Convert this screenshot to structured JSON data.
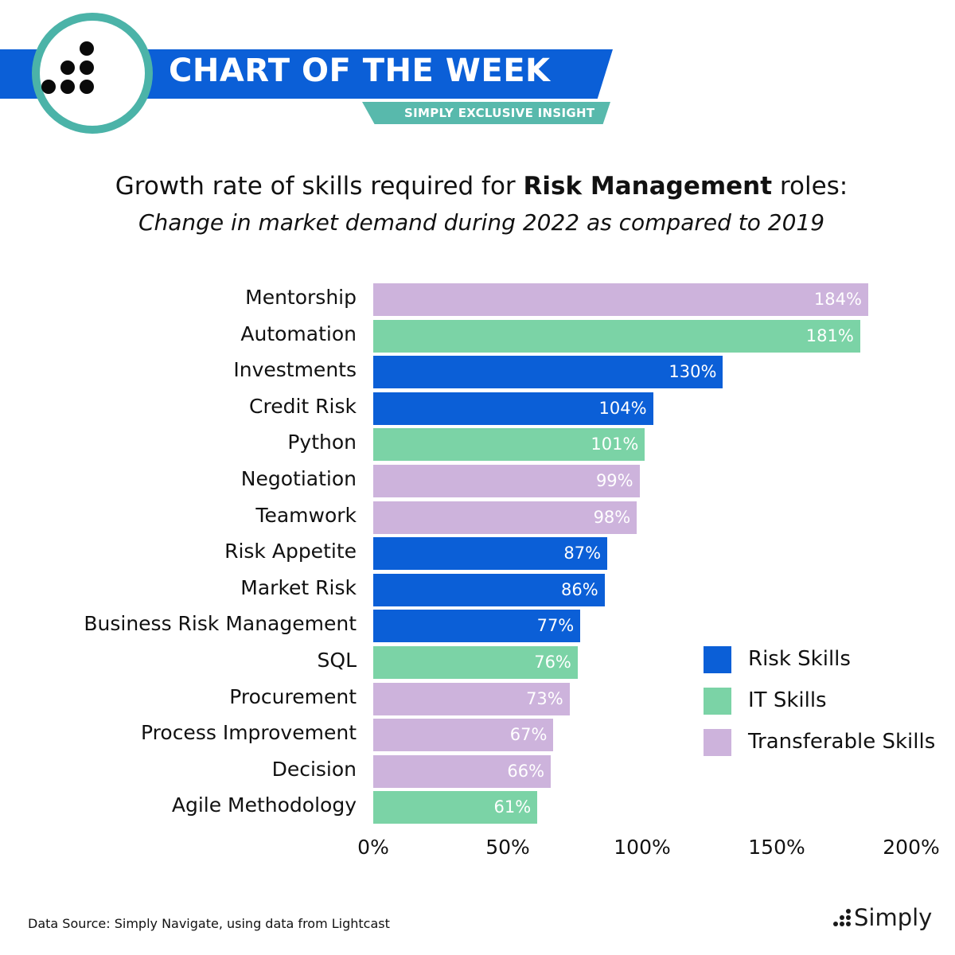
{
  "header": {
    "banner_title": "CHART OF THE WEEK",
    "banner_subtitle": "SIMPLY EXCLUSIVE INSIGHT",
    "logo_icon": "dots-logo-icon",
    "colors": {
      "banner_blue": "#0b5fd7",
      "banner_teal": "#58b9ac",
      "logo_ring": "#4bb3a8"
    }
  },
  "title": {
    "prefix": "Growth rate of skills required for ",
    "bold": "Risk Management",
    "suffix": " roles:",
    "subtitle": "Change in market demand during 2022 as compared to 2019"
  },
  "chart_data": {
    "type": "bar",
    "orientation": "horizontal",
    "xlim": [
      0,
      200
    ],
    "x_ticks": [
      "0%",
      "50%",
      "100%",
      "150%",
      "200%"
    ],
    "grid": false,
    "legend_position": "right",
    "categories": [
      "Mentorship",
      "Automation",
      "Investments",
      "Credit Risk",
      "Python",
      "Negotiation",
      "Teamwork",
      "Risk Appetite",
      "Market Risk",
      "Business Risk Management",
      "SQL",
      "Procurement",
      "Process Improvement",
      "Decision",
      "Agile Methodology"
    ],
    "values": [
      184,
      181,
      130,
      104,
      101,
      99,
      98,
      87,
      86,
      77,
      76,
      73,
      67,
      66,
      61
    ],
    "value_labels": [
      "184%",
      "181%",
      "130%",
      "104%",
      "101%",
      "99%",
      "98%",
      "87%",
      "86%",
      "77%",
      "76%",
      "73%",
      "67%",
      "66%",
      "61%"
    ],
    "groups": [
      "transferable",
      "it",
      "risk",
      "risk",
      "it",
      "transferable",
      "transferable",
      "risk",
      "risk",
      "risk",
      "it",
      "transferable",
      "transferable",
      "transferable",
      "it"
    ],
    "legend": [
      {
        "key": "risk",
        "label": "Risk Skills",
        "color": "#0b5fd7"
      },
      {
        "key": "it",
        "label": "IT Skills",
        "color": "#7bd3a6"
      },
      {
        "key": "transferable",
        "label": "Transferable Skills",
        "color": "#cdb3dc"
      }
    ]
  },
  "footer": {
    "source": "Data Source: Simply Navigate, using data from Lightcast",
    "brand": "Simply",
    "brand_icon": "simply-dots-icon"
  }
}
